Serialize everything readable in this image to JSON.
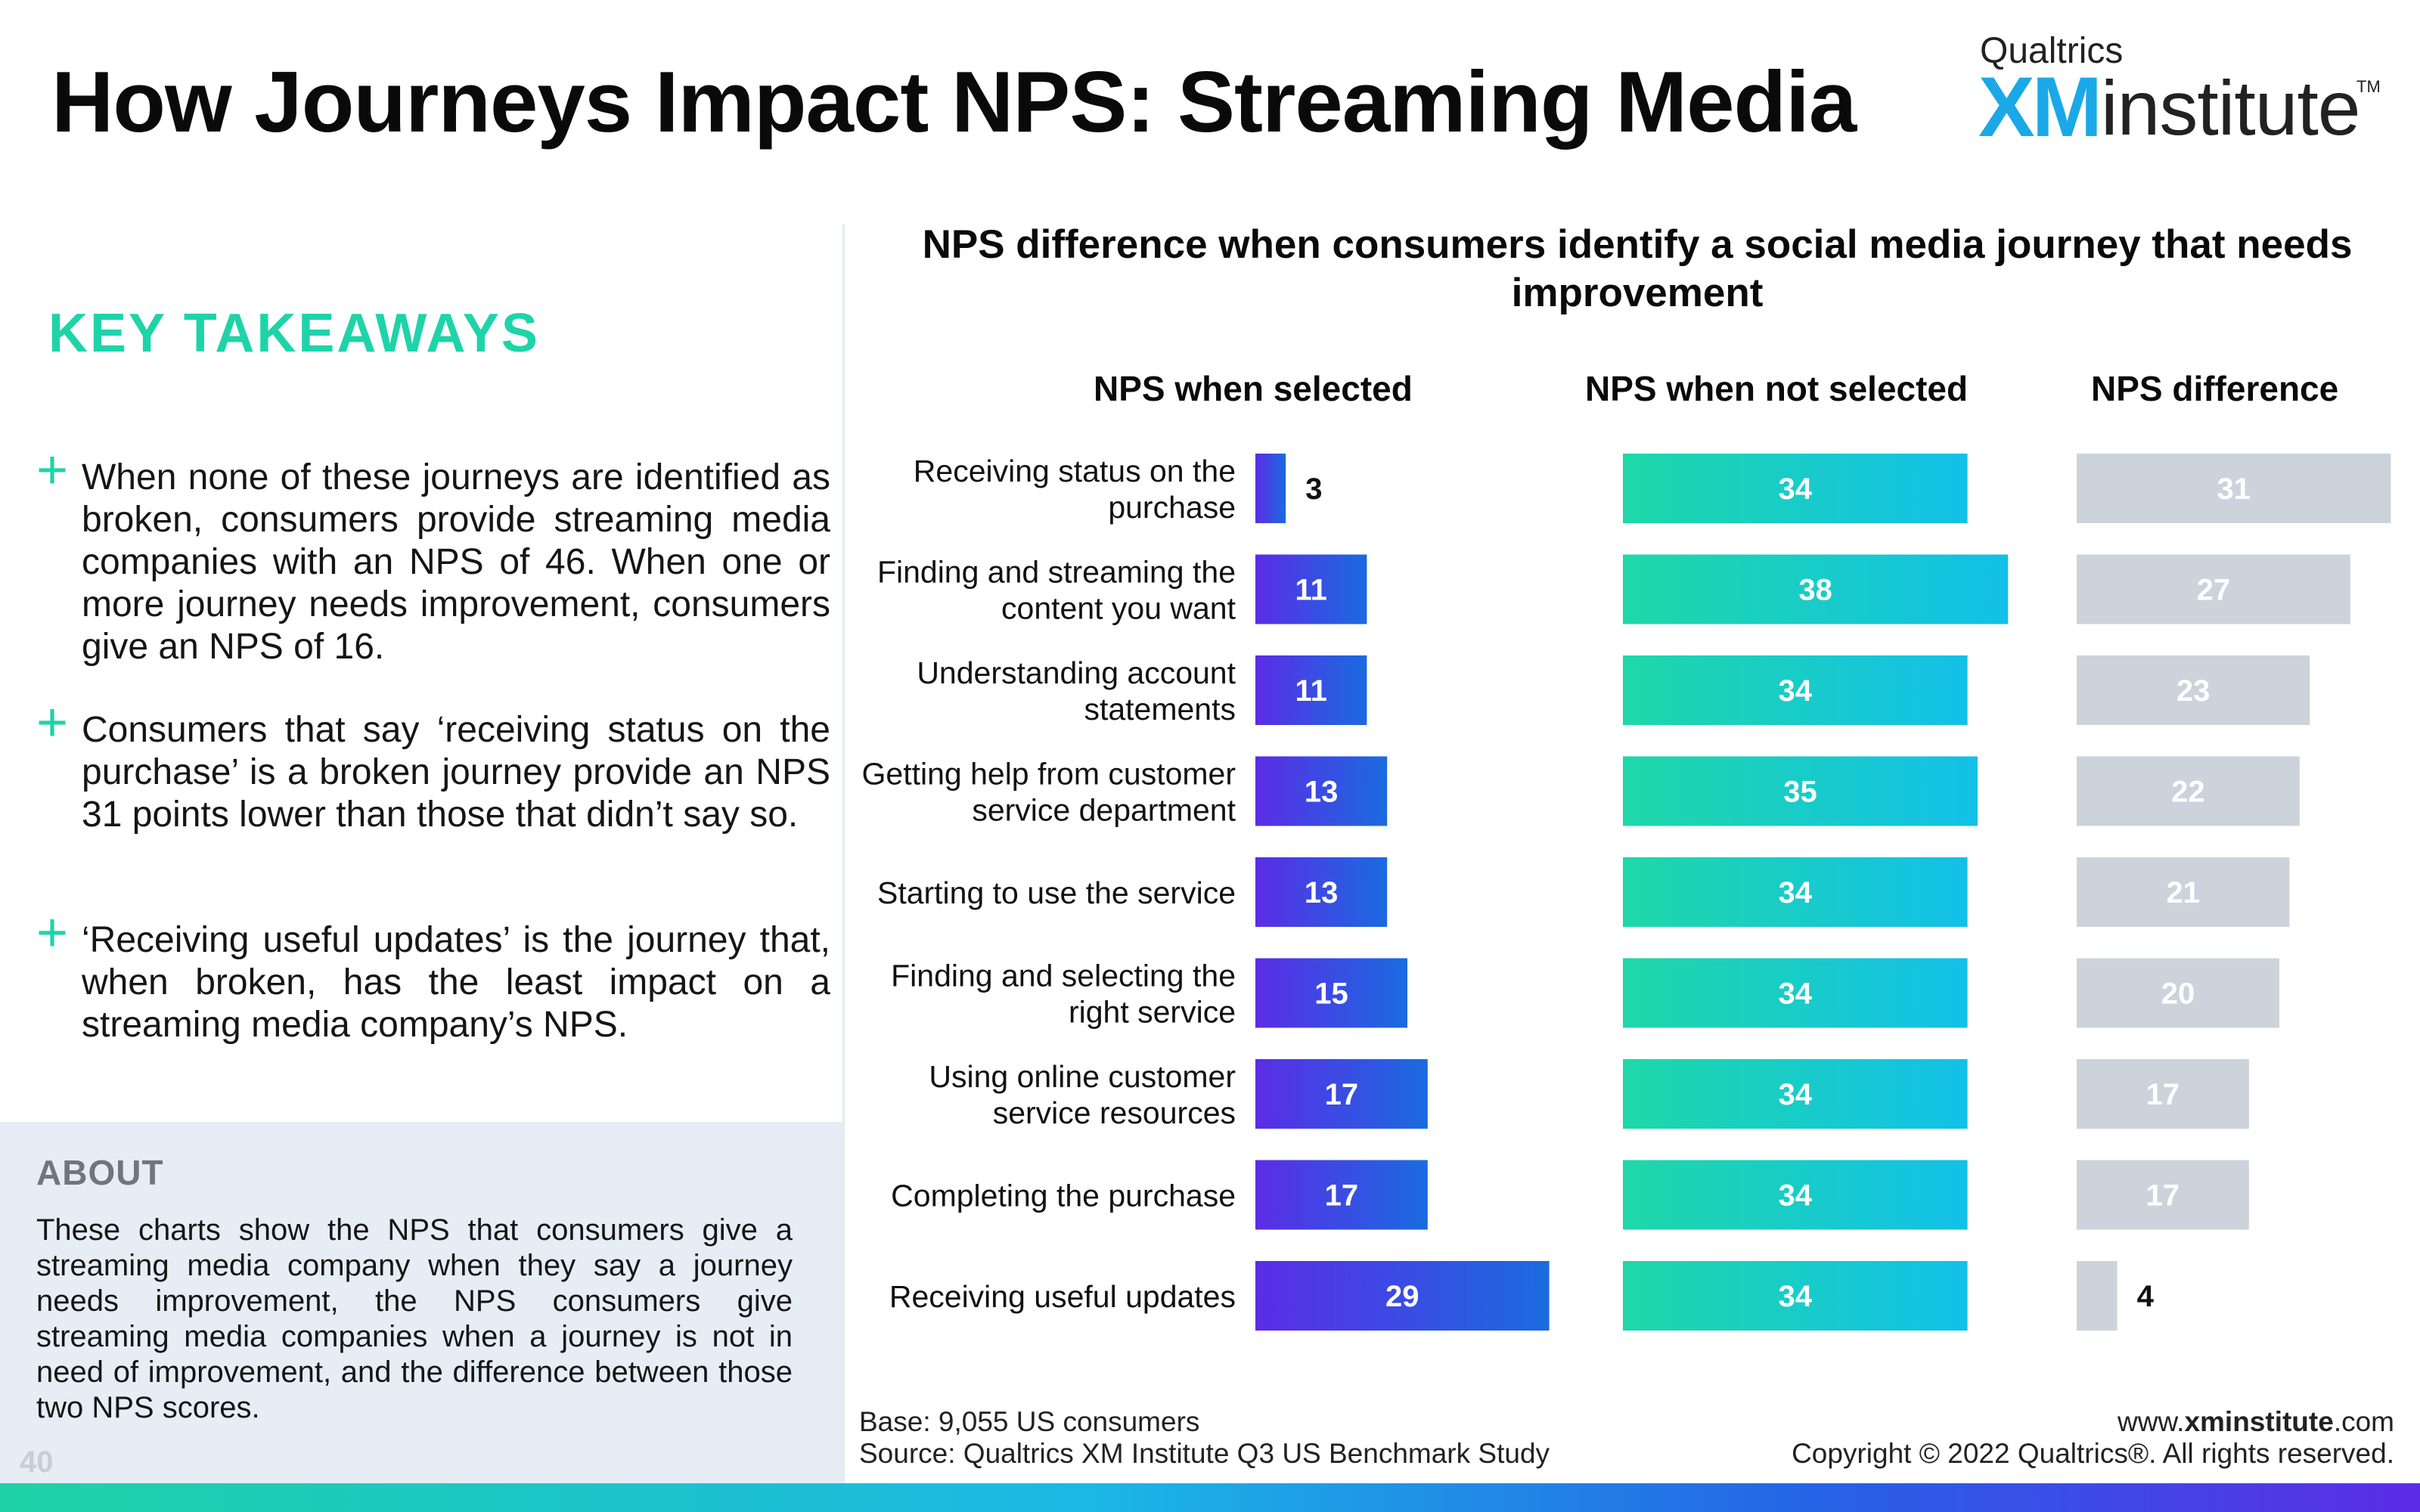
{
  "header": {
    "title": "How Journeys Impact NPS: Streaming Media",
    "logo": {
      "top": "Qualtrics",
      "xm": "XM",
      "institute": "institute",
      "tm": "TM"
    }
  },
  "takeaways": {
    "heading": "KEY TAKEAWAYS",
    "items": [
      "When none of these journeys are identified as broken, consumers provide streaming media companies with an NPS of 46. When one or more journey needs improvement, consumers give an NPS of 16.",
      "Consumers that say ‘receiving status on the purchase’ is a broken journey provide an NPS 31 points lower than those that didn’t say so.",
      "‘Receiving useful updates’ is the journey that, when broken, has the least impact on a streaming media company’s NPS."
    ]
  },
  "about": {
    "heading": "ABOUT",
    "text": "These charts show the NPS that consumers give a streaming media company when they say a journey needs improvement, the NPS consumers give streaming media companies when a journey is not in need of improvement, and the difference between those two NPS scores."
  },
  "page_number": "40",
  "chart_data": {
    "type": "bar",
    "orientation": "horizontal",
    "title": "NPS difference when consumers identify a social media journey that needs improvement",
    "categories": [
      "Receiving status on the purchase",
      "Finding and streaming the content you want",
      "Understanding account statements",
      "Getting help from customer service department",
      "Starting to use the service",
      "Finding and selecting the right service",
      "Using online customer service resources",
      "Completing the purchase",
      "Receiving useful updates"
    ],
    "category_lines": [
      [
        "Receiving status on the",
        "purchase"
      ],
      [
        "Finding and streaming the",
        "content you want"
      ],
      [
        "Understanding account",
        "statements"
      ],
      [
        "Getting help from customer",
        "service department"
      ],
      [
        "Starting to use the service"
      ],
      [
        "Finding and selecting the",
        "right service"
      ],
      [
        "Using online customer",
        "service resources"
      ],
      [
        "Completing the purchase"
      ],
      [
        "Receiving useful updates"
      ]
    ],
    "series": [
      {
        "name": "NPS when selected",
        "values": [
          3,
          11,
          11,
          13,
          13,
          15,
          17,
          17,
          29
        ]
      },
      {
        "name": "NPS when not selected",
        "values": [
          34,
          38,
          34,
          35,
          34,
          34,
          34,
          34,
          34
        ]
      },
      {
        "name": "NPS difference",
        "values": [
          31,
          27,
          23,
          22,
          21,
          20,
          17,
          17,
          4
        ]
      }
    ],
    "colors": {
      "selected_start": "#5b2ce6",
      "selected_end": "#1a6be0",
      "not_selected_start": "#1ed8a8",
      "not_selected_end": "#13c0e8",
      "difference": "#ccd3da"
    }
  },
  "footer": {
    "base": "Base: 9,055 US consumers",
    "source": "Source: Qualtrics XM Institute Q3 US Benchmark Study",
    "url_prefix": "www.",
    "url_bold": "xminstitute",
    "url_suffix": ".com",
    "copyright": "Copyright © 2022 Qualtrics®. All rights reserved."
  }
}
